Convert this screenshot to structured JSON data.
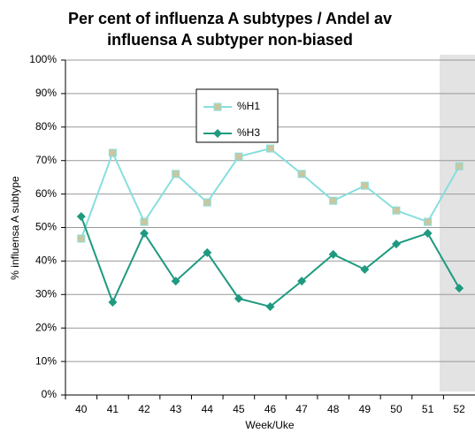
{
  "chart_data": {
    "type": "line",
    "title": [
      "Per cent of influenza A subtypes / Andel av",
      "influensa A subtyper non-biased"
    ],
    "x_label": "Week/Uke",
    "y_label": "% influensa A subtype",
    "categories": [
      "40",
      "41",
      "42",
      "43",
      "44",
      "45",
      "46",
      "47",
      "48",
      "49",
      "50",
      "51",
      "52"
    ],
    "series": [
      {
        "name": "%H1",
        "color": "#88dede",
        "marker_fill": "#c9c7a0",
        "marker": "square",
        "values": [
          46.7,
          72.3,
          51.7,
          66,
          57.5,
          71.2,
          73.6,
          66,
          58,
          62.5,
          55.1,
          51.7,
          68.3
        ]
      },
      {
        "name": "%H3",
        "color": "#1f9a80",
        "marker_fill": "#1f9a80",
        "marker": "diamond",
        "values": [
          53.3,
          27.7,
          48.3,
          34,
          42.5,
          28.8,
          26.4,
          34,
          42,
          37.5,
          45.1,
          48.3,
          31.9
        ]
      }
    ],
    "ylim": [
      0,
      100
    ],
    "yticks": [
      {
        "value": 0,
        "label": "0%"
      },
      {
        "value": 10,
        "label": "10%"
      },
      {
        "value": 20,
        "label": "20%"
      },
      {
        "value": 30,
        "label": "30%"
      },
      {
        "value": 40,
        "label": "40%"
      },
      {
        "value": 50,
        "label": "50%"
      },
      {
        "value": 60,
        "label": "60%"
      },
      {
        "value": 70,
        "label": "70%"
      },
      {
        "value": 80,
        "label": "80%"
      },
      {
        "value": 90,
        "label": "90%"
      },
      {
        "value": 100,
        "label": "100%"
      }
    ],
    "grid": true
  }
}
